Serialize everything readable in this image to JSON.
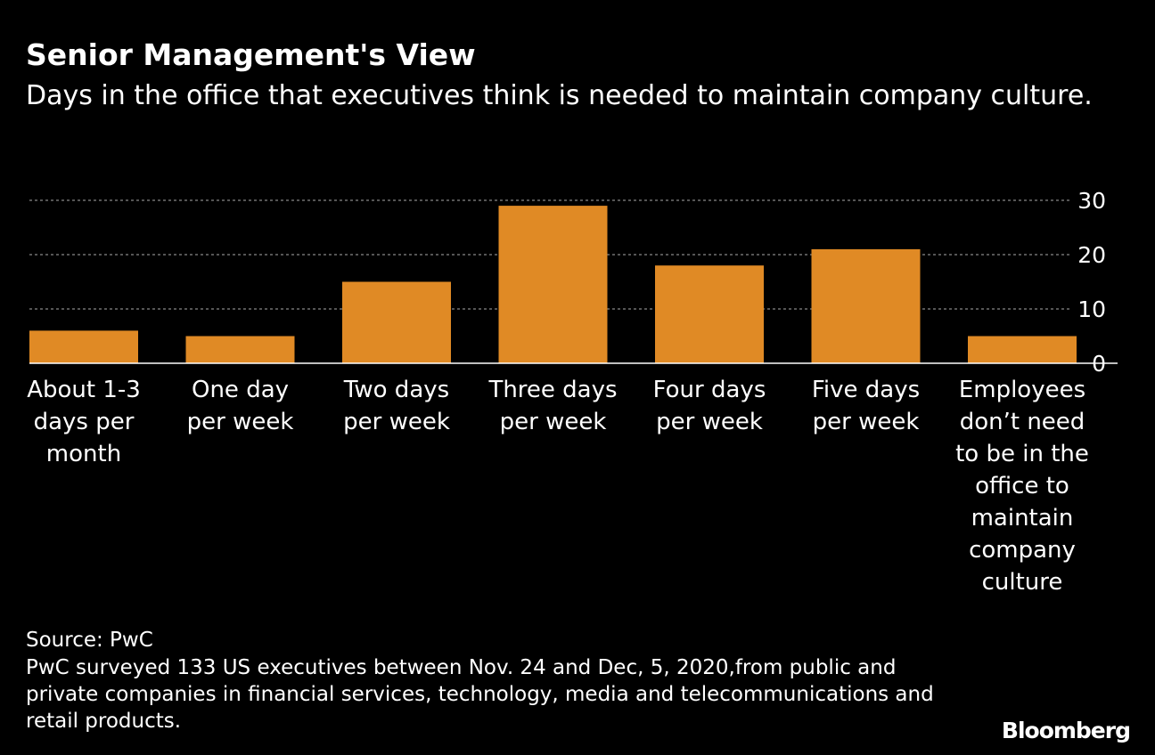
{
  "header": {
    "title": "Senior Management's View",
    "subtitle": "Days in the office that executives think is needed to maintain company culture."
  },
  "chart_data": {
    "type": "bar",
    "title": "Senior Management's View",
    "subtitle": "Days in the office that executives think is needed to maintain company culture.",
    "categories": [
      [
        "About 1-3",
        "days per",
        "month"
      ],
      [
        "One day",
        "per week"
      ],
      [
        "Two days",
        "per week"
      ],
      [
        "Three days",
        "per week"
      ],
      [
        "Four days",
        "per week"
      ],
      [
        "Five days",
        "per week"
      ],
      [
        "Employees",
        "don’t need",
        "to be in the",
        "office to",
        "maintain",
        "company",
        "culture"
      ]
    ],
    "values": [
      6,
      5,
      15,
      29,
      18,
      21,
      5
    ],
    "yticks": [
      0,
      10,
      20,
      30
    ],
    "ylim": [
      0,
      30
    ],
    "y_axis_position": "right",
    "grid": true,
    "bar_color": "#e08a25",
    "grid_color": "#888888",
    "axis_color": "#ffffff",
    "xlabel": "",
    "ylabel": ""
  },
  "footer": {
    "source": "Source: PwC",
    "note": "PwC surveyed 133 US executives between Nov. 24 and Dec, 5, 2020,from public and private companies in financial services, technology, media and telecommunications and retail products.",
    "brand": "Bloomberg"
  }
}
